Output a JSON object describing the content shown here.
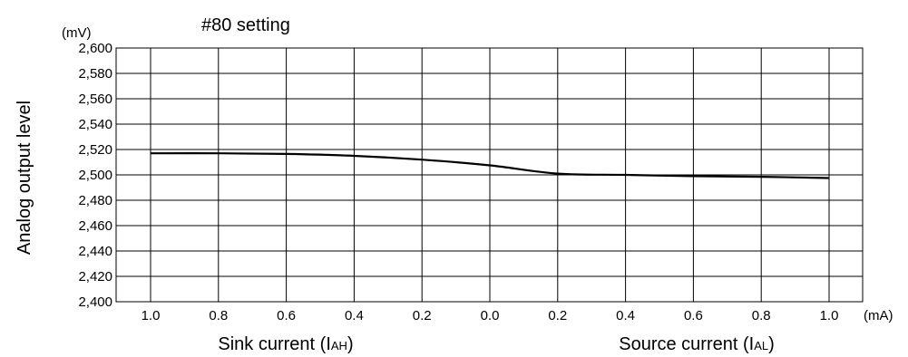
{
  "chart_data": {
    "type": "line",
    "title": "#80 setting",
    "ylabel": "Analog output level",
    "y_unit": "(mV)",
    "x_unit": "(mA)",
    "ylim": [
      2400,
      2600
    ],
    "y_ticks": [
      2400,
      2420,
      2440,
      2460,
      2480,
      2500,
      2520,
      2540,
      2560,
      2580,
      2600
    ],
    "y_tick_labels": [
      "2,400",
      "2,420",
      "2,440",
      "2,460",
      "2,480",
      "2,500",
      "2,520",
      "2,540",
      "2,560",
      "2,580",
      "2,600"
    ],
    "x": [
      -1.0,
      -0.8,
      -0.6,
      -0.4,
      -0.2,
      0.0,
      0.2,
      0.4,
      0.6,
      0.8,
      1.0
    ],
    "x_tick_labels": [
      "1.0",
      "0.8",
      "0.6",
      "0.4",
      "0.2",
      "0.0",
      "0.2",
      "0.4",
      "0.6",
      "0.8",
      "1.0"
    ],
    "x_group_labels": {
      "left": {
        "text": "Sink current (I",
        "sub": "AH",
        "close": ")"
      },
      "right": {
        "text": "Source current (I",
        "sub": "AL",
        "close": ")"
      }
    },
    "grid": true,
    "series": [
      {
        "x": [
          -1.0,
          -0.8,
          -0.6,
          -0.4,
          -0.2,
          0.0,
          0.2,
          0.4,
          0.6,
          0.8,
          1.0
        ],
        "values": [
          2517,
          2517,
          2516.5,
          2515,
          2512,
          2507.5,
          2501,
          2500,
          2499,
          2498.5,
          2497.5
        ]
      }
    ]
  }
}
